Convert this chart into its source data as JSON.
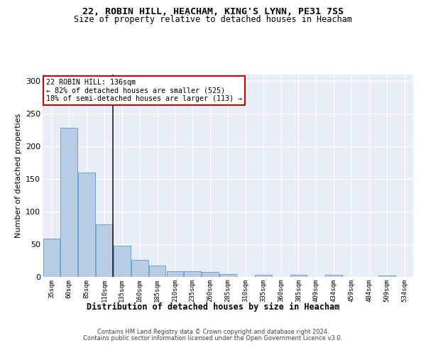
{
  "title1": "22, ROBIN HILL, HEACHAM, KING'S LYNN, PE31 7SS",
  "title2": "Size of property relative to detached houses in Heacham",
  "xlabel": "Distribution of detached houses by size in Heacham",
  "ylabel": "Number of detached properties",
  "categories": [
    "35sqm",
    "60sqm",
    "85sqm",
    "110sqm",
    "135sqm",
    "160sqm",
    "185sqm",
    "210sqm",
    "235sqm",
    "260sqm",
    "285sqm",
    "310sqm",
    "335sqm",
    "360sqm",
    "385sqm",
    "409sqm",
    "434sqm",
    "459sqm",
    "484sqm",
    "509sqm",
    "534sqm"
  ],
  "values": [
    59,
    228,
    160,
    81,
    48,
    26,
    17,
    9,
    9,
    8,
    4,
    0,
    3,
    0,
    3,
    0,
    3,
    0,
    0,
    2,
    0
  ],
  "bar_color": "#b8cce4",
  "bar_edge_color": "#5b9bd5",
  "vline_x_index": 3.5,
  "vline_color": "#1f1f1f",
  "annotation_line1": "22 ROBIN HILL: 136sqm",
  "annotation_line2": "← 82% of detached houses are smaller (525)",
  "annotation_line3": "18% of semi-detached houses are larger (113) →",
  "annotation_box_color": "#cc0000",
  "annotation_box_fill": "#ffffff",
  "ylim": [
    0,
    310
  ],
  "yticks": [
    0,
    50,
    100,
    150,
    200,
    250,
    300
  ],
  "background_color": "#e8eef5",
  "footnote1": "Contains HM Land Registry data © Crown copyright and database right 2024.",
  "footnote2": "Contains public sector information licensed under the Open Government Licence v3.0."
}
